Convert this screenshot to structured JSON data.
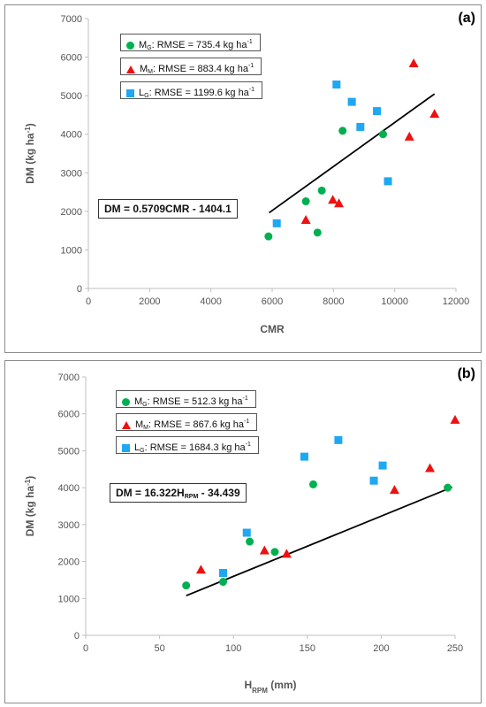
{
  "panels": [
    {
      "label": "(a)",
      "legend": [
        {
          "base": "M",
          "sub": "G",
          "text": ": RMSE = 735.4 kg ha",
          "sup": "-1",
          "color": "#00b050",
          "marker": "circle"
        },
        {
          "base": "M",
          "sub": "M",
          "text": ": RMSE = 883.4 kg ha",
          "sup": "-1",
          "color": "#ee1111",
          "marker": "triangle"
        },
        {
          "base": "L",
          "sub": "G",
          "text": ": RMSE = 1199.6 kg ha",
          "sup": "-1",
          "color": "#1ea7f2",
          "marker": "square"
        }
      ],
      "equation": {
        "prefix": "DM = 0.5709CMR - 1404.1",
        "sub": "",
        "suffix": ""
      },
      "xlabel": {
        "base": "CMR",
        "sub": "",
        "suffix": ""
      },
      "ylabel": {
        "base": "DM (kg ha",
        "sup": "-1",
        "suffix": ")"
      }
    },
    {
      "label": "(b)",
      "legend": [
        {
          "base": "M",
          "sub": "G",
          "text": ": RMSE = 512.3 kg ha",
          "sup": "-1",
          "color": "#00b050",
          "marker": "circle"
        },
        {
          "base": "M",
          "sub": "M",
          "text": ": RMSE = 867.6 kg ha",
          "sup": "-1",
          "color": "#ee1111",
          "marker": "triangle"
        },
        {
          "base": "L",
          "sub": "G",
          "text": ": RMSE = 1684.3 kg ha",
          "sup": "-1",
          "color": "#1ea7f2",
          "marker": "square"
        }
      ],
      "equation": {
        "prefix": "DM = 16.322H",
        "sub": "RPM",
        "suffix": " - 34.439"
      },
      "xlabel": {
        "base": "H",
        "sub": "RPM",
        "suffix": " (mm)"
      },
      "ylabel": {
        "base": "DM (kg ha",
        "sup": "-1",
        "suffix": ")"
      }
    }
  ],
  "chart_data": [
    {
      "type": "scatter",
      "xlim": [
        0,
        12000
      ],
      "ylim": [
        0,
        7000
      ],
      "xticks": [
        0,
        2000,
        4000,
        6000,
        8000,
        10000,
        12000
      ],
      "yticks": [
        0,
        1000,
        2000,
        3000,
        4000,
        5000,
        6000,
        7000
      ],
      "grid": false,
      "series": [
        {
          "name": "MG",
          "color": "#00b050",
          "marker": "circle",
          "x": [
            5880,
            7100,
            7480,
            7620,
            8300,
            9620
          ],
          "y": [
            1350,
            2260,
            1450,
            2540,
            4090,
            4000
          ]
        },
        {
          "name": "MM",
          "color": "#ee1111",
          "marker": "triangle",
          "x": [
            7100,
            7980,
            8180,
            10480,
            10620,
            11300
          ],
          "y": [
            1780,
            2300,
            2210,
            3940,
            5840,
            4530
          ]
        },
        {
          "name": "LG",
          "color": "#1ea7f2",
          "marker": "square",
          "x": [
            6150,
            8100,
            8600,
            8880,
            9420,
            9780
          ],
          "y": [
            1690,
            5290,
            4840,
            4190,
            4600,
            2780
          ]
        }
      ],
      "fit_line": {
        "x": [
          5900,
          11300
        ],
        "y": [
          1964,
          5047
        ]
      }
    },
    {
      "type": "scatter",
      "xlim": [
        0,
        250
      ],
      "ylim": [
        0,
        7000
      ],
      "xticks": [
        0,
        50,
        100,
        150,
        200,
        250
      ],
      "yticks": [
        0,
        1000,
        2000,
        3000,
        4000,
        5000,
        6000,
        7000
      ],
      "grid": false,
      "series": [
        {
          "name": "MG",
          "color": "#00b050",
          "marker": "circle",
          "x": [
            68,
            93,
            111,
            128,
            154,
            245
          ],
          "y": [
            1350,
            1450,
            2540,
            2260,
            4090,
            4000
          ]
        },
        {
          "name": "MM",
          "color": "#ee1111",
          "marker": "triangle",
          "x": [
            78,
            121,
            136,
            209,
            233,
            250
          ],
          "y": [
            1780,
            2300,
            2210,
            3940,
            4530,
            5840
          ]
        },
        {
          "name": "LG",
          "color": "#1ea7f2",
          "marker": "square",
          "x": [
            93,
            109,
            148,
            171,
            195,
            201
          ],
          "y": [
            1690,
            2780,
            4840,
            5290,
            4190,
            4600
          ]
        }
      ],
      "fit_line": {
        "x": [
          68,
          248
        ],
        "y": [
          1075,
          4013
        ]
      }
    }
  ]
}
